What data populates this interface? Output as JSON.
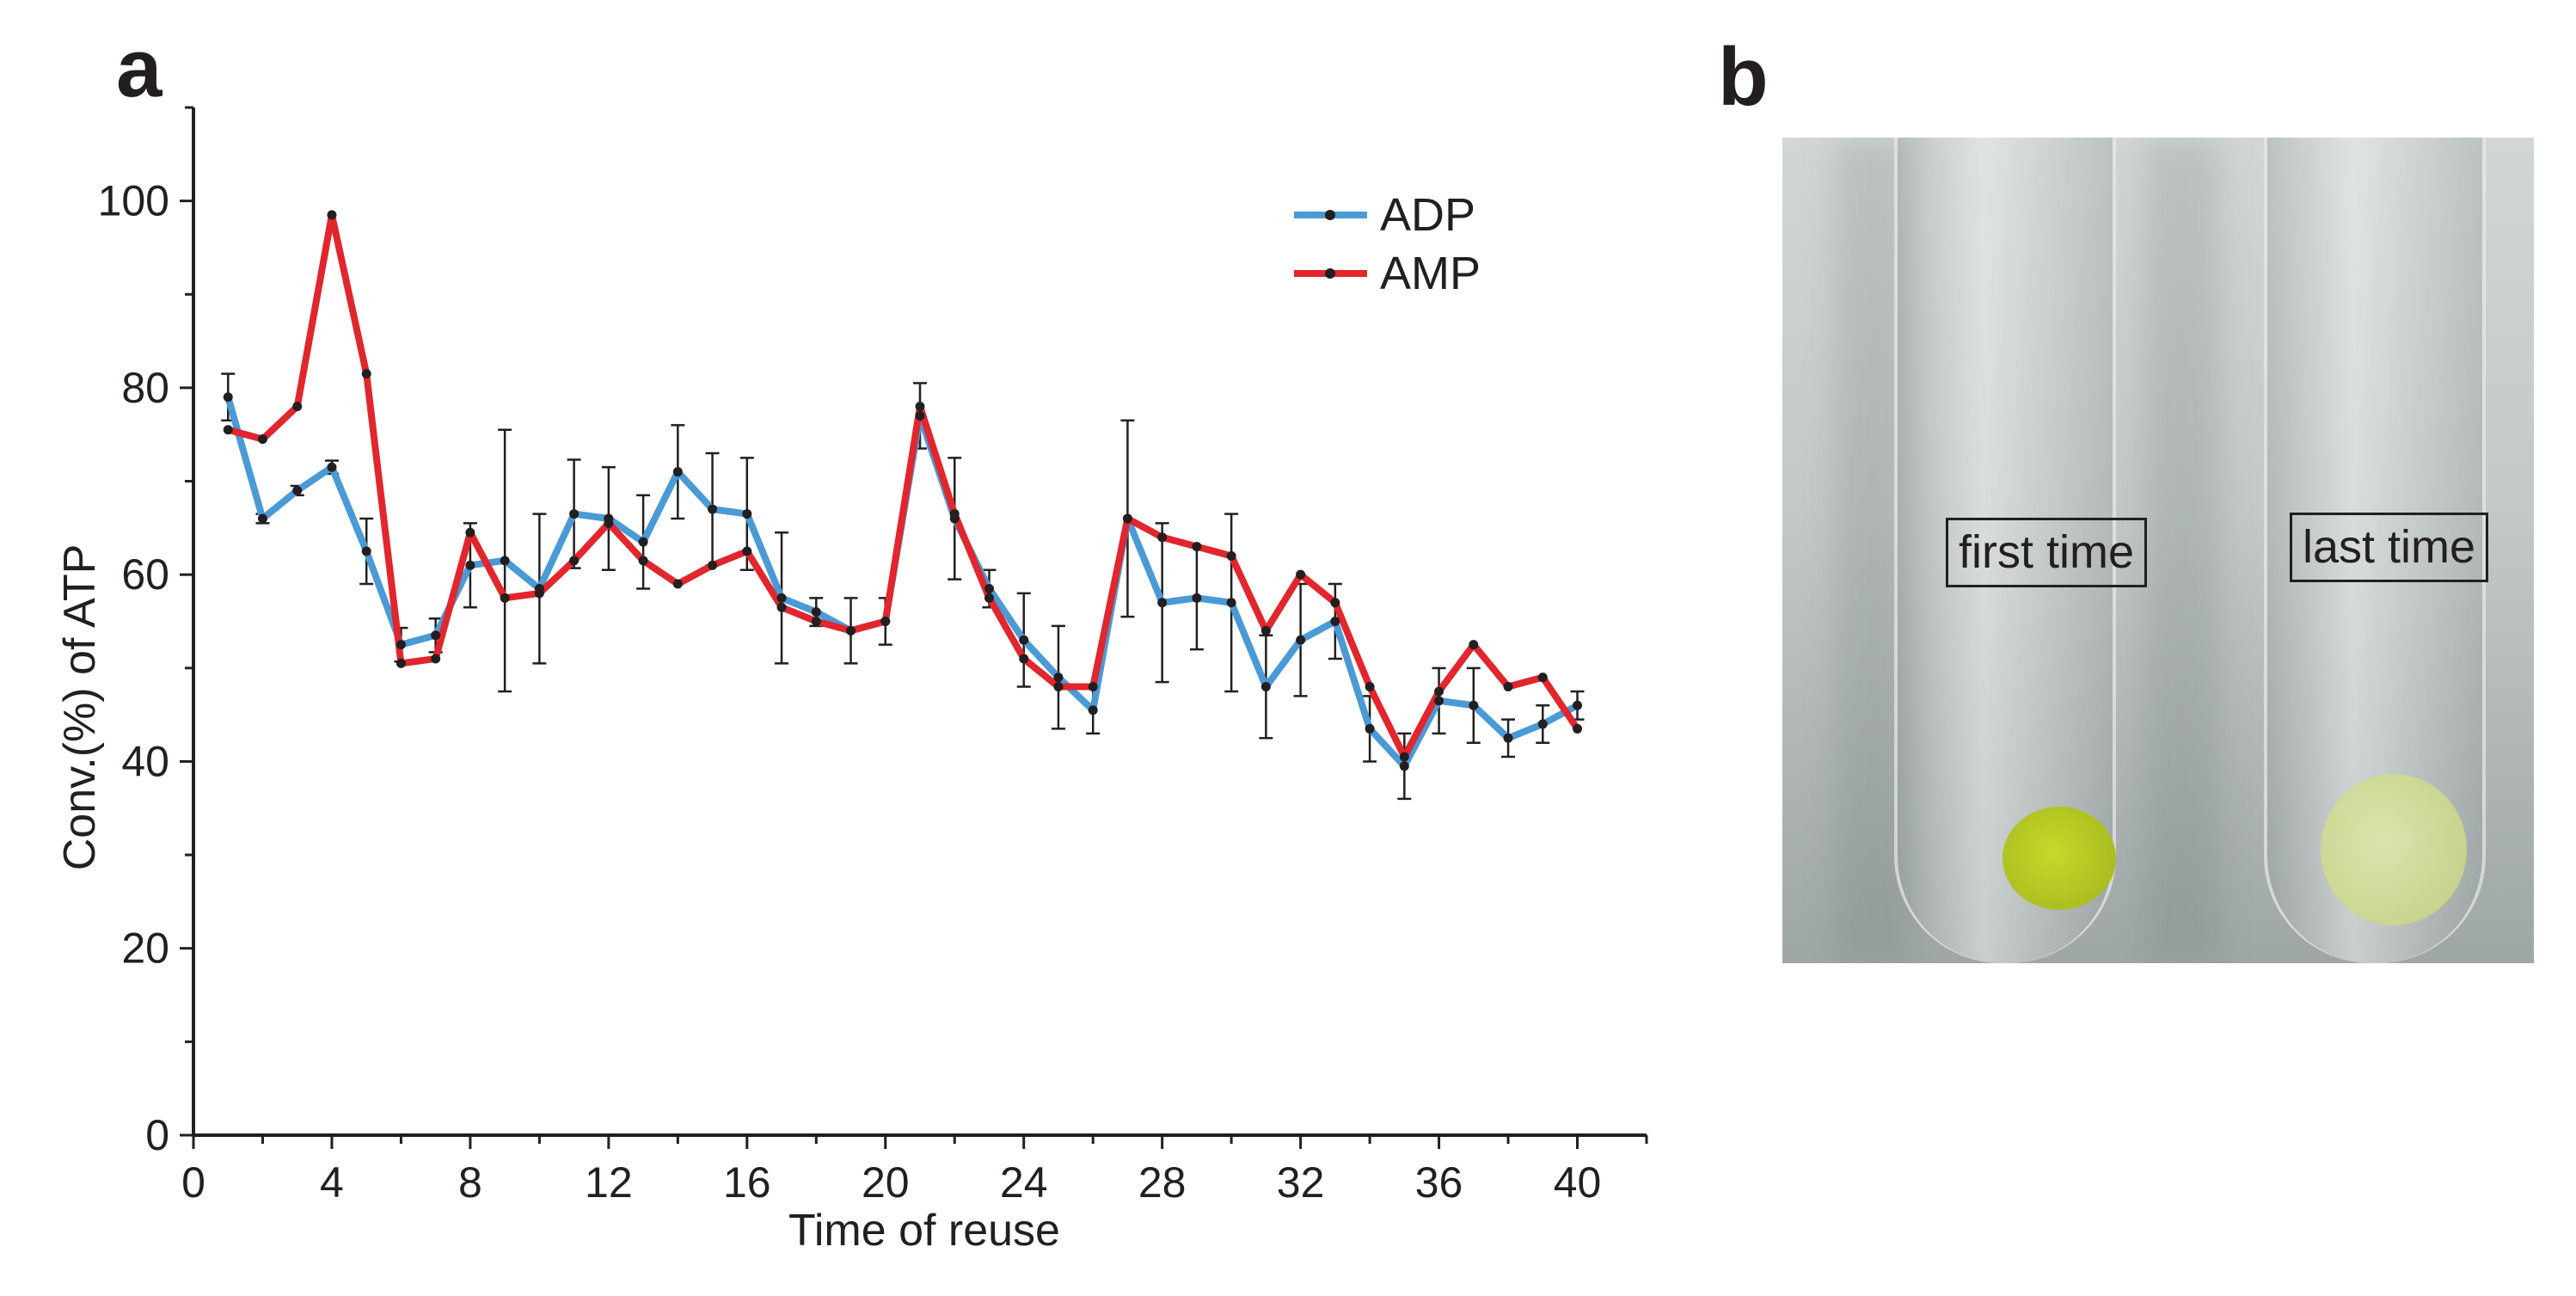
{
  "panel_a_label": "a",
  "panel_b_label": "b",
  "chart_data": {
    "type": "line",
    "title": "",
    "xlabel": "Time of reuse",
    "ylabel": "Conv.(%) of ATP",
    "xlim": [
      0,
      42
    ],
    "ylim": [
      0,
      110
    ],
    "xticks": [
      0,
      4,
      8,
      12,
      16,
      20,
      24,
      28,
      32,
      36,
      40
    ],
    "yticks": [
      0,
      20,
      40,
      60,
      80,
      100
    ],
    "legend_position": "top-right",
    "x": [
      1,
      2,
      3,
      4,
      5,
      6,
      7,
      8,
      9,
      10,
      11,
      12,
      13,
      14,
      15,
      16,
      17,
      18,
      19,
      20,
      21,
      22,
      23,
      24,
      25,
      26,
      27,
      28,
      29,
      30,
      31,
      32,
      33,
      34,
      35,
      36,
      37,
      38,
      39,
      40
    ],
    "series": [
      {
        "name": "ADP",
        "color": "#4a9ad6",
        "values": [
          79,
          66,
          69,
          71.5,
          62.5,
          52.5,
          53.5,
          61,
          61.5,
          58.5,
          66.5,
          66,
          63.5,
          71,
          67,
          66.5,
          57.5,
          56,
          54,
          55,
          77,
          66,
          58.5,
          53,
          49,
          45.5,
          66,
          57,
          57.5,
          57,
          48,
          53,
          55,
          43.5,
          39.5,
          46.5,
          46,
          42.5,
          44,
          46
        ],
        "errors": [
          2.5,
          0.5,
          0.5,
          0.7,
          3.5,
          1.8,
          1.8,
          4.5,
          14,
          8,
          5.8,
          5.5,
          5,
          5,
          6,
          6,
          7,
          1.5,
          3.5,
          2.5,
          3.5,
          6.5,
          2,
          5,
          5.5,
          2.5,
          10.5,
          8.5,
          5.5,
          9.5,
          5.5,
          6,
          4,
          3.5,
          3.5,
          3.5,
          4,
          2,
          2,
          1.5
        ]
      },
      {
        "name": "AMP",
        "color": "#e1262d",
        "values": [
          75.5,
          74.5,
          78,
          98.5,
          81.5,
          50.5,
          51,
          64.5,
          57.5,
          58,
          61.5,
          65.5,
          61.5,
          59,
          61,
          62.5,
          56.5,
          55,
          54,
          55,
          78,
          66.5,
          57.5,
          51,
          48,
          48,
          66,
          64,
          63,
          62,
          54,
          60,
          57,
          48,
          40.5,
          47.5,
          52.5,
          48,
          49,
          43.5
        ]
      }
    ]
  },
  "photo": {
    "label_left": "first time",
    "label_right": "last time",
    "pellet_first_color": "#c7d92a",
    "pellet_last_color": "#dfe8a8"
  }
}
